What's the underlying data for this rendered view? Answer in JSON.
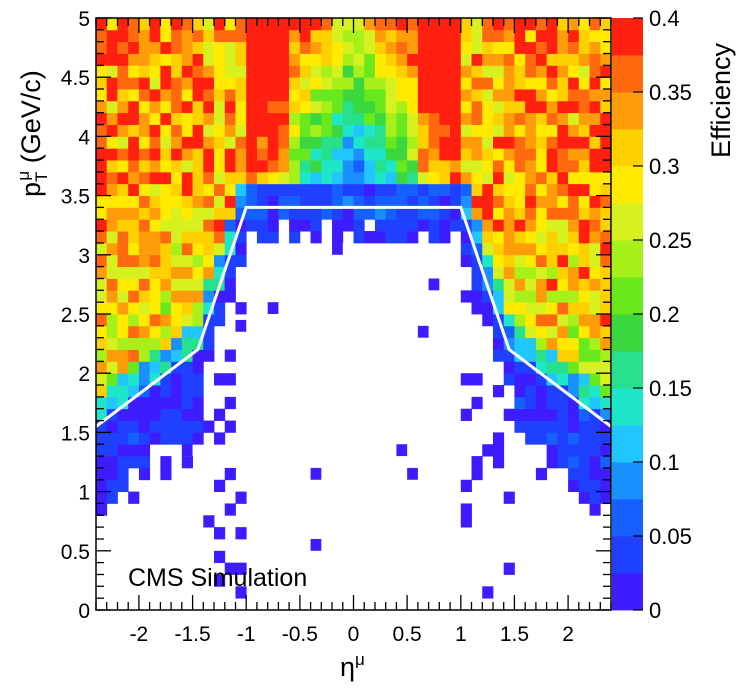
{
  "chart_data": {
    "type": "heatmap",
    "title": "",
    "annotation": "CMS Simulation",
    "xlabel": {
      "text": "η",
      "sup": "μ"
    },
    "ylabel": {
      "prefix": "p",
      "sup": "μ",
      "sub": "T",
      "suffix": " (GeV/c)"
    },
    "colorbar_label": "Efficiency",
    "xlim": [
      -2.4,
      2.4
    ],
    "ylim": [
      0,
      5
    ],
    "x_ticks": [
      -2,
      -1.5,
      -1,
      -0.5,
      0,
      0.5,
      1,
      1.5,
      2
    ],
    "x_tick_labels": [
      "-2",
      "-1.5",
      "-1",
      "-0.5",
      "0",
      "0.5",
      "1",
      "1.5",
      "2"
    ],
    "y_ticks": [
      0,
      0.5,
      1,
      1.5,
      2,
      2.5,
      3,
      3.5,
      4,
      4.5,
      5
    ],
    "y_tick_labels": [
      "0",
      "0.5",
      "1",
      "1.5",
      "2",
      "2.5",
      "3",
      "3.5",
      "4",
      "4.5",
      "5"
    ],
    "grid": false,
    "bins": {
      "x_count": 48,
      "y_count": 50
    },
    "colorbar": {
      "range": [
        0,
        0.4
      ],
      "levels": 16,
      "tick_values": [
        0,
        0.05,
        0.1,
        0.15,
        0.2,
        0.25,
        0.3,
        0.35,
        0.4
      ],
      "tick_labels": [
        "0",
        "0.05",
        "0.1",
        "0.15",
        "0.2",
        "0.25",
        "0.3",
        "0.35",
        "0.4"
      ],
      "colors": [
        "#3d1cff",
        "#2040ff",
        "#1560ff",
        "#1a90ff",
        "#22c6ff",
        "#1ee6c8",
        "#26e08c",
        "#3ad83e",
        "#6ae81e",
        "#a8f01a",
        "#d6f020",
        "#ffea00",
        "#ffd000",
        "#ff9c0a",
        "#ff6a10",
        "#ff2010"
      ]
    },
    "acceptance_boundary": {
      "color": "#ffffff",
      "x": [
        -2.4,
        -1.45,
        -1.0,
        1.0,
        1.45,
        2.4
      ],
      "y": [
        1.55,
        2.2,
        3.4,
        3.4,
        2.2,
        1.55
      ]
    },
    "isolated_low_efficiency_bins": [
      [
        -0.35,
        0.55
      ],
      [
        -0.35,
        1.15
      ],
      [
        0.55,
        1.15
      ],
      [
        0.45,
        1.35
      ],
      [
        -1.55,
        1.35
      ],
      [
        -1.05,
        2.4
      ],
      [
        -0.75,
        2.55
      ],
      [
        0.65,
        2.35
      ],
      [
        0.75,
        2.75
      ],
      [
        -1.15,
        2.75
      ],
      [
        -0.35,
        3.15
      ],
      [
        0.15,
        3.15
      ],
      [
        -0.15,
        3.05
      ]
    ]
  }
}
